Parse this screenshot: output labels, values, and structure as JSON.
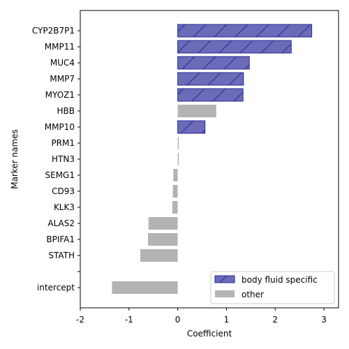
{
  "chart_data": {
    "type": "bar",
    "orientation": "horizontal",
    "xlabel": "Coefficient",
    "ylabel": "Marker names",
    "xlim": [
      -2,
      3.3
    ],
    "xticks": [
      "-2",
      "-1",
      "0",
      "1",
      "2",
      "3"
    ],
    "xtick_values": [
      -2,
      -1,
      0,
      1,
      2,
      3
    ],
    "categories": [
      "CYP2B7P1",
      "MMP11",
      "MUC4",
      "MMP7",
      "MYOZ1",
      "HBB",
      "MMP10",
      "PRM1",
      "HTN3",
      "SEMG1",
      "CD93",
      "KLK3",
      "ALAS2",
      "BPIFA1",
      "STATH",
      "",
      "intercept"
    ],
    "values": [
      2.75,
      2.33,
      1.47,
      1.35,
      1.34,
      0.79,
      0.56,
      0.02,
      0.0,
      -0.09,
      -0.1,
      -0.11,
      -0.6,
      -0.61,
      -0.77,
      null,
      -1.35
    ],
    "groups": [
      "body fluid specific",
      "body fluid specific",
      "body fluid specific",
      "body fluid specific",
      "body fluid specific",
      "other",
      "body fluid specific",
      "other",
      "other",
      "other",
      "other",
      "other",
      "other",
      "other",
      "other",
      "",
      "other"
    ],
    "series": [
      {
        "name": "body fluid specific",
        "color": "#6b6bb8",
        "edge": "#2a2a9a",
        "hatch": "/"
      },
      {
        "name": "other",
        "color": "#b3b3b3"
      }
    ],
    "legend_position": "lower-right",
    "grid": false
  }
}
